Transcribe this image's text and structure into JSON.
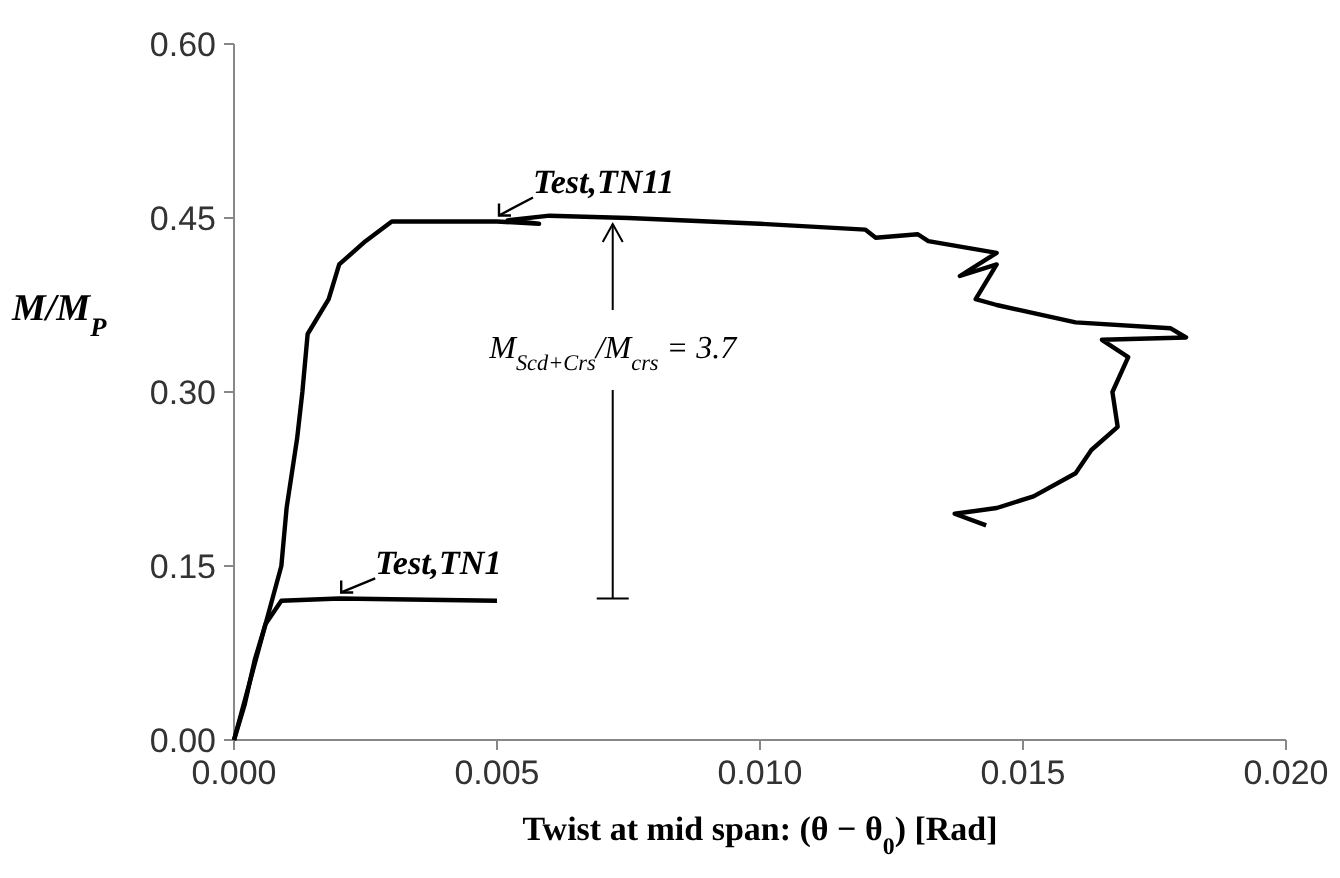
{
  "chart_data": {
    "type": "line",
    "xlabel": "Twist at mid span: (θ − θ$_{0}$) [Rad]",
    "ylabel": "M/M$_{P}$",
    "xlim": [
      0,
      0.02
    ],
    "xticks": [
      {
        "value": 0,
        "label": "0.000"
      },
      {
        "value": 0.005,
        "label": "0.005"
      },
      {
        "value": 0.01,
        "label": "0.010"
      },
      {
        "value": 0.015,
        "label": "0.015"
      },
      {
        "value": 0.02,
        "label": "0.020"
      }
    ],
    "ylim": [
      0,
      0.6
    ],
    "yticks": [
      {
        "value": 0,
        "label": "0.00"
      },
      {
        "value": 0.15,
        "label": "0.15"
      },
      {
        "value": 0.3,
        "label": "0.30"
      },
      {
        "value": 0.45,
        "label": "0.45"
      },
      {
        "value": 0.6,
        "label": "0.60"
      }
    ],
    "grid": false,
    "marker": "none",
    "line_style": "solid",
    "series": [
      {
        "name": "Test,TN1",
        "color": "#000000",
        "x": [
          0,
          0.0002,
          0.0004,
          0.0006,
          0.0009,
          0.002,
          0.005
        ],
        "values": [
          0,
          0.03,
          0.07,
          0.1,
          0.12,
          0.122,
          0.12
        ]
      },
      {
        "name": "Test,TN11",
        "color": "#000000",
        "x": [
          0,
          0.0003,
          0.0006,
          0.0009,
          0.001,
          0.0012,
          0.0013,
          0.0014,
          0.0018,
          0.002,
          0.0025,
          0.003,
          0.005,
          0.0058,
          0.0052,
          0.006,
          0.0075,
          0.01,
          0.012,
          0.0122,
          0.013,
          0.0132,
          0.0145,
          0.0138,
          0.0145,
          0.0141,
          0.0145,
          0.016,
          0.0178,
          0.0181,
          0.0165,
          0.017,
          0.0167,
          0.0168,
          0.0163,
          0.016,
          0.0152,
          0.0145,
          0.0137,
          0.0143
        ],
        "values": [
          0,
          0.05,
          0.1,
          0.15,
          0.2,
          0.26,
          0.3,
          0.35,
          0.38,
          0.41,
          0.43,
          0.447,
          0.447,
          0.445,
          0.448,
          0.452,
          0.45,
          0.445,
          0.44,
          0.433,
          0.436,
          0.43,
          0.42,
          0.4,
          0.41,
          0.38,
          0.375,
          0.36,
          0.355,
          0.347,
          0.345,
          0.33,
          0.3,
          0.27,
          0.25,
          0.23,
          0.21,
          0.2,
          0.195,
          0.185
        ]
      }
    ],
    "annotations": [
      {
        "text": "M$_{Scd+Crs}$/M$_{crs}$ = 3.7",
        "x": 0.0072,
        "y": 0.45
      }
    ]
  }
}
